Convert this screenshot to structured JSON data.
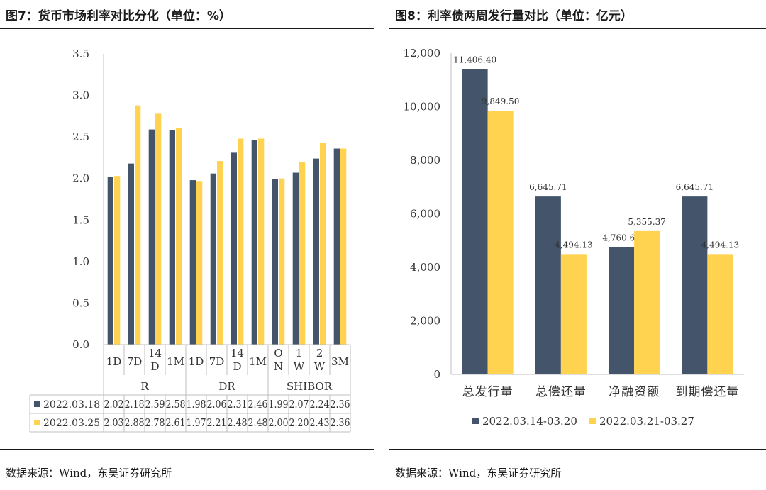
{
  "chart_data": [
    {
      "type": "bar",
      "title": "图7：货币市场利率对比分化（单位：%）",
      "source": "数据来源：Wind，东吴证券研究所",
      "groups": [
        {
          "name": "R",
          "categories": [
            "1D",
            "7D",
            "14\nD",
            "1M"
          ]
        },
        {
          "name": "DR",
          "categories": [
            "1D",
            "7D",
            "14\nD",
            "1M"
          ]
        },
        {
          "name": "SHIBOR",
          "categories": [
            "O\nN",
            "1\nW",
            "2\nW",
            "3M"
          ]
        }
      ],
      "series": [
        {
          "name": "2022.03.18",
          "color": "#44546a",
          "values": [
            2.02,
            2.18,
            2.59,
            2.58,
            1.98,
            2.06,
            2.31,
            2.46,
            1.99,
            2.07,
            2.24,
            2.36
          ],
          "labels": [
            "2.02",
            "2.18",
            "2.59",
            "2.58",
            "1.98",
            "2.06",
            "2.31",
            "2.46",
            "1.99",
            "2.07",
            "2.24",
            "2.36"
          ]
        },
        {
          "name": "2022.03.25",
          "color": "#ffd34f",
          "values": [
            2.03,
            2.88,
            2.78,
            2.61,
            1.97,
            2.21,
            2.48,
            2.48,
            2.0,
            2.2,
            2.43,
            2.36
          ],
          "labels": [
            "2.03",
            "2.88",
            "2.78",
            "2.61",
            "1.97",
            "2.21",
            "2.48",
            "2.48",
            "2.00",
            "2.20",
            "2.43",
            "2.36"
          ]
        }
      ],
      "yticks": [
        "0.0",
        "0.5",
        "1.0",
        "1.5",
        "2.0",
        "2.5",
        "3.0",
        "3.5"
      ],
      "ylim": [
        0,
        3.5
      ],
      "grid": false,
      "legend": "data-table"
    },
    {
      "type": "bar",
      "title": "图8：利率债两周发行量对比（单位：亿元）",
      "source": "数据来源：Wind，东吴证券研究所",
      "categories": [
        "总发行量",
        "总偿还量",
        "净融资额",
        "到期偿还量"
      ],
      "series": [
        {
          "name": "2022.03.14-03.20",
          "color": "#44546a",
          "values": [
            11406.4,
            6645.71,
            4760.69,
            6645.71
          ],
          "labels": [
            "11,406.40",
            "6,645.71",
            "4,760.69",
            "6,645.71"
          ]
        },
        {
          "name": "2022.03.21-03.27",
          "color": "#ffd34f",
          "values": [
            9849.5,
            4494.13,
            5355.37,
            4494.13
          ],
          "labels": [
            "9,849.50",
            "4,494.13",
            "5,355.37",
            "4,494.13"
          ]
        }
      ],
      "yticks": [
        "0",
        "2,000",
        "4,000",
        "6,000",
        "8,000",
        "10,000",
        "12,000"
      ],
      "ylim": [
        0,
        12000
      ],
      "grid": false,
      "legend": "bottom"
    }
  ]
}
